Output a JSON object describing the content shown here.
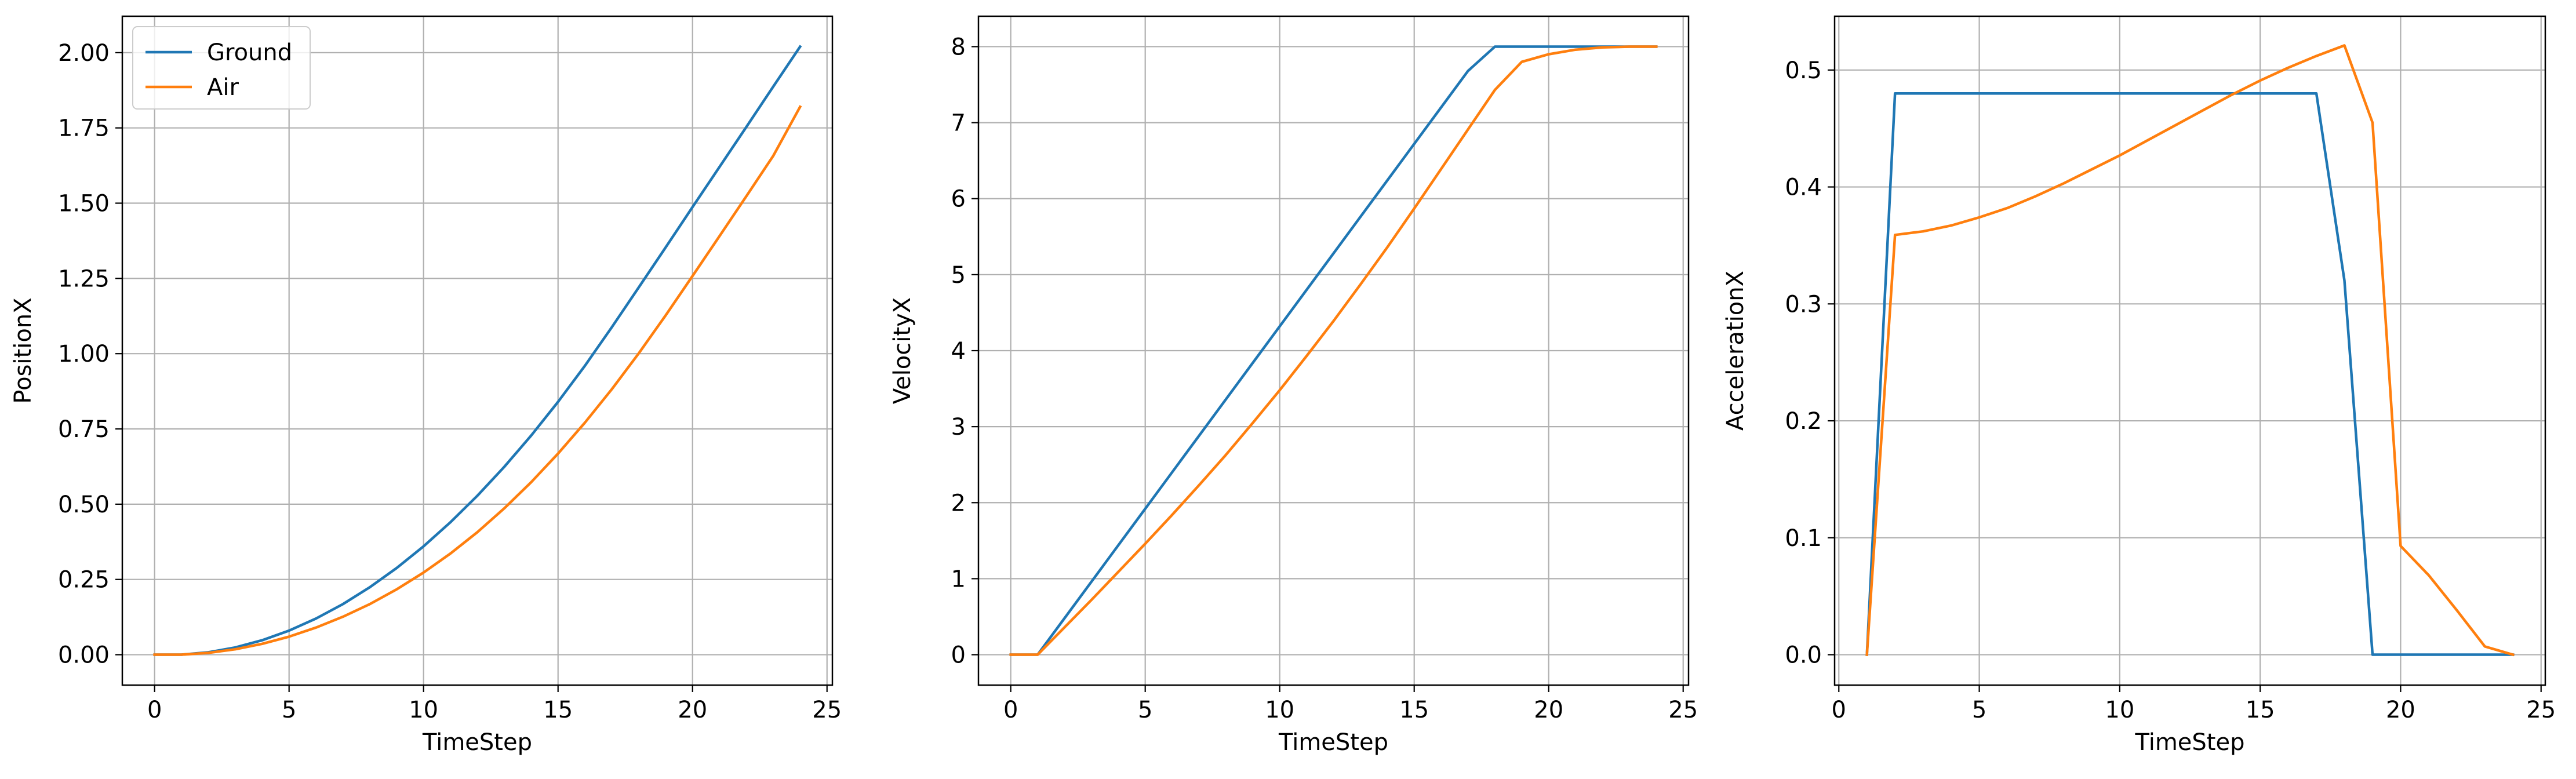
{
  "chart_data": [
    {
      "type": "line",
      "xlabel": "TimeStep",
      "ylabel": "PositionX",
      "xlim": [
        -1.2,
        25.2
      ],
      "ylim": [
        -0.101,
        2.121
      ],
      "xticks": [
        0,
        5,
        10,
        15,
        20,
        25
      ],
      "yticks": [
        0.0,
        0.25,
        0.5,
        0.75,
        1.0,
        1.25,
        1.5,
        1.75,
        2.0
      ],
      "ytick_labels": [
        "0.00",
        "0.25",
        "0.50",
        "0.75",
        "1.00",
        "1.25",
        "1.50",
        "1.75",
        "2.00"
      ],
      "grid": true,
      "legend": "top-left",
      "series": [
        {
          "name": "Ground",
          "color": "#1f77b4",
          "x": [
            0,
            1,
            2,
            3,
            4,
            5,
            6,
            7,
            8,
            9,
            10,
            11,
            12,
            13,
            14,
            15,
            16,
            17,
            18,
            19,
            20,
            21,
            22,
            23,
            24
          ],
          "y": [
            0.0,
            0.0,
            0.008,
            0.024,
            0.048,
            0.08,
            0.12,
            0.168,
            0.224,
            0.288,
            0.36,
            0.44,
            0.528,
            0.624,
            0.728,
            0.84,
            0.96,
            1.088,
            1.22,
            1.353,
            1.487,
            1.62,
            1.753,
            1.887,
            2.02
          ]
        },
        {
          "name": "Air",
          "color": "#ff7f0e",
          "x": [
            0,
            1,
            2,
            3,
            4,
            5,
            6,
            7,
            8,
            9,
            10,
            11,
            12,
            13,
            14,
            15,
            16,
            17,
            18,
            19,
            20,
            21,
            22,
            23,
            24
          ],
          "y": [
            0.0,
            0.0,
            0.006,
            0.018,
            0.036,
            0.06,
            0.09,
            0.126,
            0.168,
            0.217,
            0.273,
            0.336,
            0.407,
            0.486,
            0.573,
            0.668,
            0.771,
            0.882,
            1.001,
            1.127,
            1.258,
            1.39,
            1.523,
            1.657,
            1.82
          ]
        }
      ]
    },
    {
      "type": "line",
      "xlabel": "TimeStep",
      "ylabel": "VelocityX",
      "xlim": [
        -1.2,
        25.2
      ],
      "ylim": [
        -0.4,
        8.4
      ],
      "xticks": [
        0,
        5,
        10,
        15,
        20,
        25
      ],
      "yticks": [
        0,
        1,
        2,
        3,
        4,
        5,
        6,
        7,
        8
      ],
      "ytick_labels": [
        "0",
        "1",
        "2",
        "3",
        "4",
        "5",
        "6",
        "7",
        "8"
      ],
      "grid": true,
      "series": [
        {
          "color": "#1f77b4",
          "x": [
            0,
            1,
            17,
            18,
            19,
            20,
            21,
            22,
            23,
            24
          ],
          "y": [
            0.0,
            0.0,
            7.68,
            8.0,
            8.0,
            8.0,
            8.0,
            8.0,
            8.0,
            8.0
          ]
        },
        {
          "color": "#ff7f0e",
          "x": [
            0,
            1,
            2,
            3,
            4,
            5,
            6,
            7,
            8,
            9,
            10,
            11,
            12,
            13,
            14,
            15,
            16,
            17,
            18,
            19,
            20,
            21,
            22,
            23,
            24
          ],
          "y": [
            0.0,
            0.0,
            0.36,
            0.72,
            1.09,
            1.46,
            1.84,
            2.23,
            2.63,
            3.05,
            3.48,
            3.93,
            4.39,
            4.87,
            5.36,
            5.87,
            6.39,
            6.91,
            7.43,
            7.8,
            7.9,
            7.96,
            7.99,
            8.0,
            8.0
          ]
        }
      ]
    },
    {
      "type": "line",
      "xlabel": "TimeStep",
      "ylabel": "AccelerationX",
      "xlim": [
        -0.15,
        25.15
      ],
      "ylim": [
        -0.026,
        0.546
      ],
      "xticks": [
        0,
        5,
        10,
        15,
        20,
        25
      ],
      "yticks": [
        0.0,
        0.1,
        0.2,
        0.3,
        0.4,
        0.5
      ],
      "ytick_labels": [
        "0.0",
        "0.1",
        "0.2",
        "0.3",
        "0.4",
        "0.5"
      ],
      "grid": true,
      "series": [
        {
          "color": "#1f77b4",
          "x": [
            1,
            2,
            17,
            18,
            19,
            24
          ],
          "y": [
            0.0,
            0.48,
            0.48,
            0.32,
            0.0,
            0.0
          ]
        },
        {
          "color": "#ff7f0e",
          "x": [
            1,
            2,
            3,
            4,
            5,
            6,
            7,
            8,
            9,
            10,
            11,
            12,
            13,
            14,
            15,
            16,
            17,
            18,
            19,
            20,
            21,
            22,
            23,
            24
          ],
          "y": [
            0.0,
            0.359,
            0.362,
            0.367,
            0.374,
            0.382,
            0.392,
            0.403,
            0.415,
            0.427,
            0.44,
            0.453,
            0.466,
            0.479,
            0.491,
            0.502,
            0.512,
            0.521,
            0.455,
            0.093,
            0.068,
            0.038,
            0.007,
            0.0
          ]
        }
      ]
    }
  ]
}
